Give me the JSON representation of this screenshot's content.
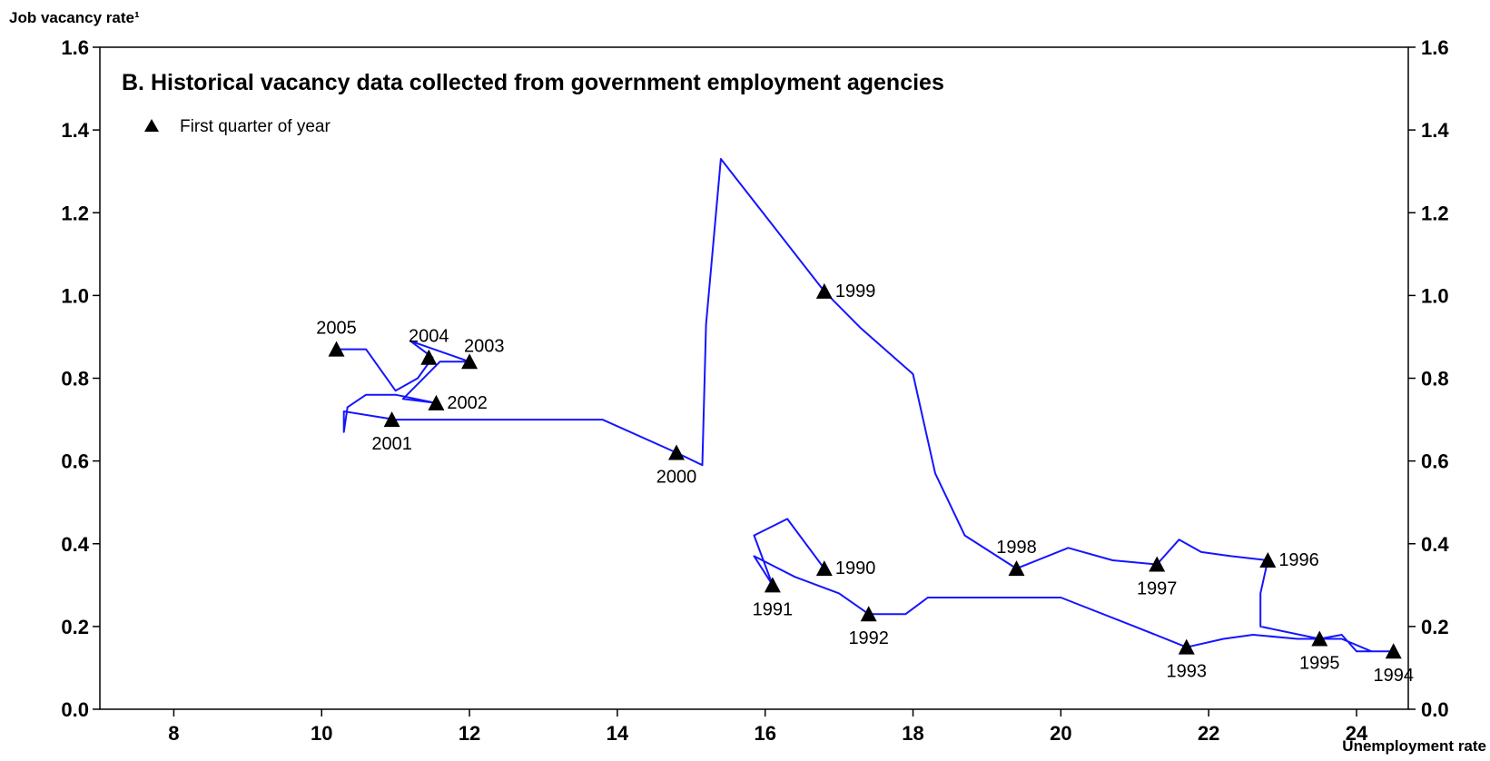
{
  "chart_data": {
    "type": "scatter",
    "title": "B. Historical vacancy data collected from government employment agencies",
    "xlabel": "Unemployment rate",
    "ylabel": "Job vacancy rate¹",
    "xlim": [
      7,
      24.7
    ],
    "ylim": [
      0,
      1.6
    ],
    "x_ticks": [
      "8",
      "10",
      "12",
      "14",
      "16",
      "18",
      "20",
      "22",
      "24"
    ],
    "y_ticks": [
      "0.0",
      "0.2",
      "0.4",
      "0.6",
      "0.8",
      "1.0",
      "1.2",
      "1.4",
      "1.6"
    ],
    "legend": {
      "label": "First quarter of year",
      "position": "top-left"
    },
    "grid": false,
    "colors": {
      "line": "#1515ff",
      "marker": "#000000",
      "axis": "#000000"
    },
    "series": [
      {
        "points": [
          [
            16.8,
            0.34
          ],
          [
            16.3,
            0.46
          ],
          [
            15.85,
            0.42
          ],
          [
            16.1,
            0.3
          ],
          [
            15.85,
            0.37
          ],
          [
            16.4,
            0.32
          ],
          [
            17.0,
            0.28
          ],
          [
            17.4,
            0.23
          ],
          [
            17.9,
            0.23
          ],
          [
            18.2,
            0.27
          ],
          [
            19.0,
            0.27
          ],
          [
            20.0,
            0.27
          ],
          [
            21.0,
            0.2
          ],
          [
            21.7,
            0.15
          ],
          [
            22.2,
            0.17
          ],
          [
            22.6,
            0.18
          ],
          [
            23.2,
            0.17
          ],
          [
            23.8,
            0.17
          ],
          [
            24.2,
            0.14
          ],
          [
            24.5,
            0.14
          ],
          [
            24.0,
            0.14
          ],
          [
            23.8,
            0.18
          ],
          [
            23.5,
            0.17
          ],
          [
            22.7,
            0.2
          ],
          [
            22.7,
            0.28
          ],
          [
            22.8,
            0.36
          ],
          [
            22.3,
            0.37
          ],
          [
            21.9,
            0.38
          ],
          [
            21.6,
            0.41
          ],
          [
            21.3,
            0.35
          ],
          [
            20.7,
            0.36
          ],
          [
            20.1,
            0.39
          ],
          [
            19.4,
            0.34
          ],
          [
            18.7,
            0.42
          ],
          [
            18.3,
            0.57
          ],
          [
            18.0,
            0.81
          ],
          [
            17.3,
            0.92
          ],
          [
            16.8,
            1.01
          ],
          [
            16.1,
            1.17
          ],
          [
            15.4,
            1.33
          ],
          [
            15.2,
            0.93
          ],
          [
            15.15,
            0.59
          ],
          [
            14.8,
            0.62
          ],
          [
            13.8,
            0.7
          ],
          [
            12.5,
            0.7
          ],
          [
            11.0,
            0.7
          ],
          [
            10.3,
            0.72
          ],
          [
            10.3,
            0.67
          ],
          [
            10.35,
            0.73
          ],
          [
            10.6,
            0.76
          ],
          [
            11.0,
            0.76
          ],
          [
            11.55,
            0.74
          ],
          [
            11.1,
            0.75
          ],
          [
            11.6,
            0.84
          ],
          [
            12.0,
            0.84
          ],
          [
            11.2,
            0.89
          ],
          [
            11.5,
            0.85
          ],
          [
            11.3,
            0.8
          ],
          [
            11.0,
            0.77
          ],
          [
            10.6,
            0.87
          ],
          [
            10.2,
            0.87
          ]
        ]
      }
    ],
    "markers": [
      {
        "label": "1990",
        "x": 16.8,
        "y": 0.34,
        "label_pos": "right"
      },
      {
        "label": "1991",
        "x": 16.1,
        "y": 0.3,
        "label_pos": "below"
      },
      {
        "label": "1992",
        "x": 17.4,
        "y": 0.23,
        "label_pos": "below"
      },
      {
        "label": "1993",
        "x": 21.7,
        "y": 0.15,
        "label_pos": "below"
      },
      {
        "label": "1994",
        "x": 24.5,
        "y": 0.14,
        "label_pos": "below"
      },
      {
        "label": "1995",
        "x": 23.5,
        "y": 0.17,
        "label_pos": "below"
      },
      {
        "label": "1996",
        "x": 22.8,
        "y": 0.36,
        "label_pos": "right"
      },
      {
        "label": "1997",
        "x": 21.3,
        "y": 0.35,
        "label_pos": "below"
      },
      {
        "label": "1998",
        "x": 19.4,
        "y": 0.34,
        "label_pos": "above"
      },
      {
        "label": "1999",
        "x": 16.8,
        "y": 1.01,
        "label_pos": "right"
      },
      {
        "label": "2000",
        "x": 14.8,
        "y": 0.62,
        "label_pos": "below"
      },
      {
        "label": "2001",
        "x": 10.95,
        "y": 0.7,
        "label_pos": "below"
      },
      {
        "label": "2002",
        "x": 11.55,
        "y": 0.74,
        "label_pos": "right"
      },
      {
        "label": "2003",
        "x": 12.0,
        "y": 0.84,
        "label_pos": "aboveright"
      },
      {
        "label": "2004",
        "x": 11.45,
        "y": 0.85,
        "label_pos": "above"
      },
      {
        "label": "2005",
        "x": 10.2,
        "y": 0.87,
        "label_pos": "above"
      }
    ]
  }
}
